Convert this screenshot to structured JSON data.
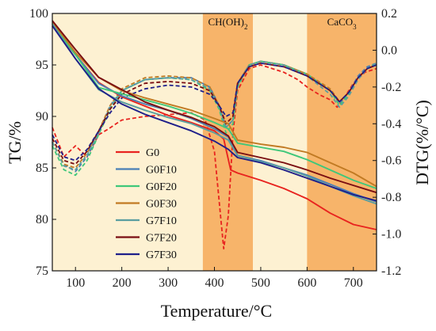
{
  "chart_data": {
    "type": "line",
    "xlabel": "Temperature/°C",
    "ylabel_left": "TG/%",
    "ylabel_right": "DTG(%/°C)",
    "xlim": [
      50,
      750
    ],
    "ylim_left": [
      75,
      100
    ],
    "ylim_right": [
      -1.2,
      0.2
    ],
    "x_ticks": [
      100,
      200,
      300,
      400,
      500,
      600,
      700
    ],
    "y_left_ticks": [
      75,
      80,
      85,
      90,
      95,
      100
    ],
    "y_right_ticks": [
      -1.2,
      -1.0,
      -0.8,
      -0.6,
      -0.4,
      -0.2,
      0.0,
      0.2
    ],
    "y_right_tick_labels": [
      "-1.2",
      "-1.0",
      "-0.8",
      "-0.6",
      "-0.4",
      "-0.2",
      "0.0",
      "0.2"
    ],
    "legend_position": "center-left",
    "colors": {
      "background_band": "#fdf1d2",
      "highlight_band": "#f7b46a"
    },
    "bands": [
      {
        "label": "CH(OH)2",
        "range": [
          375,
          483
        ]
      },
      {
        "label": "CaCO3",
        "range": [
          600,
          750
        ]
      }
    ],
    "tg_series": [
      {
        "name": "G0",
        "color": "#e8231f",
        "x": [
          50,
          100,
          150,
          200,
          250,
          300,
          350,
          400,
          420,
          435,
          450,
          500,
          550,
          600,
          650,
          700,
          750
        ],
        "y": [
          98.8,
          96.0,
          93.3,
          91.9,
          91.0,
          90.1,
          89.4,
          88.6,
          87.8,
          84.8,
          84.5,
          83.8,
          83.0,
          82.0,
          80.6,
          79.5,
          79.0
        ]
      },
      {
        "name": "G0F10",
        "color": "#4a7fb5",
        "x": [
          50,
          100,
          150,
          200,
          250,
          300,
          350,
          400,
          430,
          450,
          500,
          550,
          600,
          650,
          700,
          750
        ],
        "y": [
          99.0,
          96.0,
          93.2,
          92.0,
          91.2,
          90.6,
          89.8,
          88.8,
          88.0,
          86.2,
          85.7,
          85.0,
          84.3,
          83.4,
          82.5,
          81.7
        ]
      },
      {
        "name": "G0F20",
        "color": "#3fc77a",
        "x": [
          50,
          100,
          150,
          200,
          250,
          300,
          350,
          400,
          430,
          450,
          500,
          550,
          600,
          650,
          700,
          750
        ],
        "y": [
          99.0,
          96.0,
          92.8,
          92.2,
          91.6,
          91.0,
          90.3,
          89.4,
          88.8,
          87.4,
          87.0,
          86.6,
          85.8,
          84.8,
          83.8,
          83.0
        ]
      },
      {
        "name": "G0F30",
        "color": "#c17a23",
        "x": [
          50,
          100,
          150,
          200,
          250,
          300,
          350,
          400,
          430,
          450,
          500,
          550,
          600,
          650,
          700,
          750
        ],
        "y": [
          99.2,
          96.2,
          93.8,
          92.5,
          91.8,
          91.2,
          90.6,
          89.8,
          89.3,
          87.7,
          87.3,
          87.0,
          86.5,
          85.5,
          84.5,
          83.2
        ]
      },
      {
        "name": "G7F10",
        "color": "#5a9ea0",
        "x": [
          50,
          100,
          150,
          200,
          250,
          300,
          350,
          400,
          430,
          450,
          500,
          550,
          600,
          650,
          700,
          750
        ],
        "y": [
          99.0,
          95.6,
          92.6,
          91.4,
          90.6,
          89.9,
          89.3,
          88.4,
          87.7,
          86.2,
          85.6,
          85.0,
          84.2,
          83.2,
          82.3,
          81.5
        ]
      },
      {
        "name": "G7F20",
        "color": "#7a0e12",
        "x": [
          50,
          100,
          150,
          200,
          250,
          300,
          350,
          400,
          430,
          450,
          500,
          550,
          600,
          650,
          700,
          750
        ],
        "y": [
          99.3,
          96.5,
          93.8,
          92.6,
          91.4,
          90.6,
          89.9,
          89.0,
          88.1,
          86.5,
          86.0,
          85.5,
          84.8,
          84.0,
          83.3,
          82.6
        ]
      },
      {
        "name": "G7F30",
        "color": "#1f1f8a",
        "x": [
          50,
          100,
          150,
          200,
          250,
          300,
          350,
          400,
          430,
          450,
          500,
          550,
          600,
          650,
          700,
          750
        ],
        "y": [
          98.8,
          95.6,
          92.7,
          91.2,
          90.2,
          89.4,
          88.6,
          87.6,
          86.8,
          86.0,
          85.5,
          84.8,
          84.0,
          83.2,
          82.4,
          81.8
        ]
      }
    ],
    "dtg_series": [
      {
        "series": "G0",
        "color": "#e8231f",
        "x": [
          50,
          75,
          100,
          125,
          150,
          170,
          200,
          250,
          300,
          350,
          380,
          400,
          415,
          420,
          430,
          440,
          450,
          475,
          500,
          550,
          580,
          600,
          625,
          650,
          665,
          680,
          700,
          725,
          750
        ],
        "y": [
          -0.42,
          -0.58,
          -0.52,
          -0.58,
          -0.46,
          -0.43,
          -0.38,
          -0.36,
          -0.35,
          -0.34,
          -0.38,
          -0.55,
          -0.95,
          -1.08,
          -0.9,
          -0.45,
          -0.22,
          -0.1,
          -0.08,
          -0.12,
          -0.16,
          -0.2,
          -0.24,
          -0.27,
          -0.31,
          -0.26,
          -0.18,
          -0.12,
          -0.1
        ]
      },
      {
        "series": "G0F10",
        "color": "#4a7fb5",
        "x": [
          50,
          75,
          100,
          125,
          150,
          175,
          200,
          250,
          300,
          350,
          390,
          410,
          425,
          440,
          450,
          475,
          500,
          550,
          600,
          650,
          670,
          690,
          710,
          730,
          750
        ],
        "y": [
          -0.5,
          -0.62,
          -0.66,
          -0.58,
          -0.45,
          -0.3,
          -0.22,
          -0.16,
          -0.15,
          -0.15,
          -0.2,
          -0.3,
          -0.42,
          -0.38,
          -0.18,
          -0.08,
          -0.06,
          -0.08,
          -0.13,
          -0.22,
          -0.29,
          -0.23,
          -0.14,
          -0.09,
          -0.07
        ]
      },
      {
        "series": "G0F20",
        "color": "#3fc77a",
        "x": [
          50,
          75,
          100,
          125,
          150,
          175,
          200,
          250,
          300,
          350,
          390,
          410,
          425,
          440,
          450,
          475,
          500,
          550,
          600,
          650,
          670,
          690,
          710,
          730,
          750
        ],
        "y": [
          -0.52,
          -0.65,
          -0.68,
          -0.6,
          -0.46,
          -0.32,
          -0.22,
          -0.16,
          -0.15,
          -0.16,
          -0.22,
          -0.32,
          -0.45,
          -0.4,
          -0.2,
          -0.08,
          -0.06,
          -0.08,
          -0.13,
          -0.22,
          -0.3,
          -0.24,
          -0.15,
          -0.1,
          -0.07
        ]
      },
      {
        "series": "G0F30",
        "color": "#c17a23",
        "x": [
          50,
          75,
          100,
          125,
          150,
          175,
          200,
          250,
          300,
          350,
          390,
          410,
          425,
          440,
          450,
          475,
          500,
          550,
          600,
          650,
          670,
          690,
          710,
          730,
          750
        ],
        "y": [
          -0.5,
          -0.62,
          -0.64,
          -0.56,
          -0.44,
          -0.3,
          -0.21,
          -0.15,
          -0.14,
          -0.15,
          -0.2,
          -0.3,
          -0.4,
          -0.36,
          -0.18,
          -0.08,
          -0.06,
          -0.08,
          -0.13,
          -0.21,
          -0.28,
          -0.23,
          -0.15,
          -0.1,
          -0.08
        ]
      },
      {
        "series": "G7F10",
        "color": "#5a9ea0",
        "x": [
          50,
          75,
          100,
          125,
          150,
          175,
          200,
          250,
          300,
          350,
          390,
          410,
          425,
          440,
          450,
          475,
          500,
          550,
          600,
          650,
          670,
          690,
          710,
          730,
          750
        ],
        "y": [
          -0.5,
          -0.63,
          -0.65,
          -0.57,
          -0.45,
          -0.31,
          -0.22,
          -0.16,
          -0.15,
          -0.16,
          -0.21,
          -0.31,
          -0.42,
          -0.38,
          -0.19,
          -0.08,
          -0.06,
          -0.08,
          -0.14,
          -0.24,
          -0.31,
          -0.25,
          -0.16,
          -0.1,
          -0.07
        ]
      },
      {
        "series": "G7F20",
        "color": "#7a0e12",
        "x": [
          50,
          75,
          100,
          125,
          150,
          175,
          200,
          250,
          300,
          350,
          390,
          410,
          425,
          440,
          450,
          475,
          500,
          550,
          600,
          650,
          670,
          690,
          710,
          730,
          750
        ],
        "y": [
          -0.48,
          -0.6,
          -0.62,
          -0.55,
          -0.44,
          -0.32,
          -0.24,
          -0.18,
          -0.17,
          -0.18,
          -0.22,
          -0.3,
          -0.4,
          -0.36,
          -0.18,
          -0.09,
          -0.07,
          -0.09,
          -0.14,
          -0.22,
          -0.28,
          -0.23,
          -0.15,
          -0.1,
          -0.08
        ]
      },
      {
        "series": "G7F30",
        "color": "#1f1f8a",
        "x": [
          50,
          75,
          100,
          125,
          150,
          175,
          200,
          250,
          300,
          350,
          390,
          410,
          425,
          440,
          450,
          475,
          500,
          550,
          600,
          650,
          670,
          690,
          710,
          730,
          750
        ],
        "y": [
          -0.46,
          -0.58,
          -0.6,
          -0.54,
          -0.44,
          -0.34,
          -0.26,
          -0.21,
          -0.19,
          -0.2,
          -0.24,
          -0.3,
          -0.36,
          -0.34,
          -0.18,
          -0.09,
          -0.07,
          -0.09,
          -0.14,
          -0.22,
          -0.28,
          -0.23,
          -0.15,
          -0.1,
          -0.08
        ]
      }
    ]
  }
}
